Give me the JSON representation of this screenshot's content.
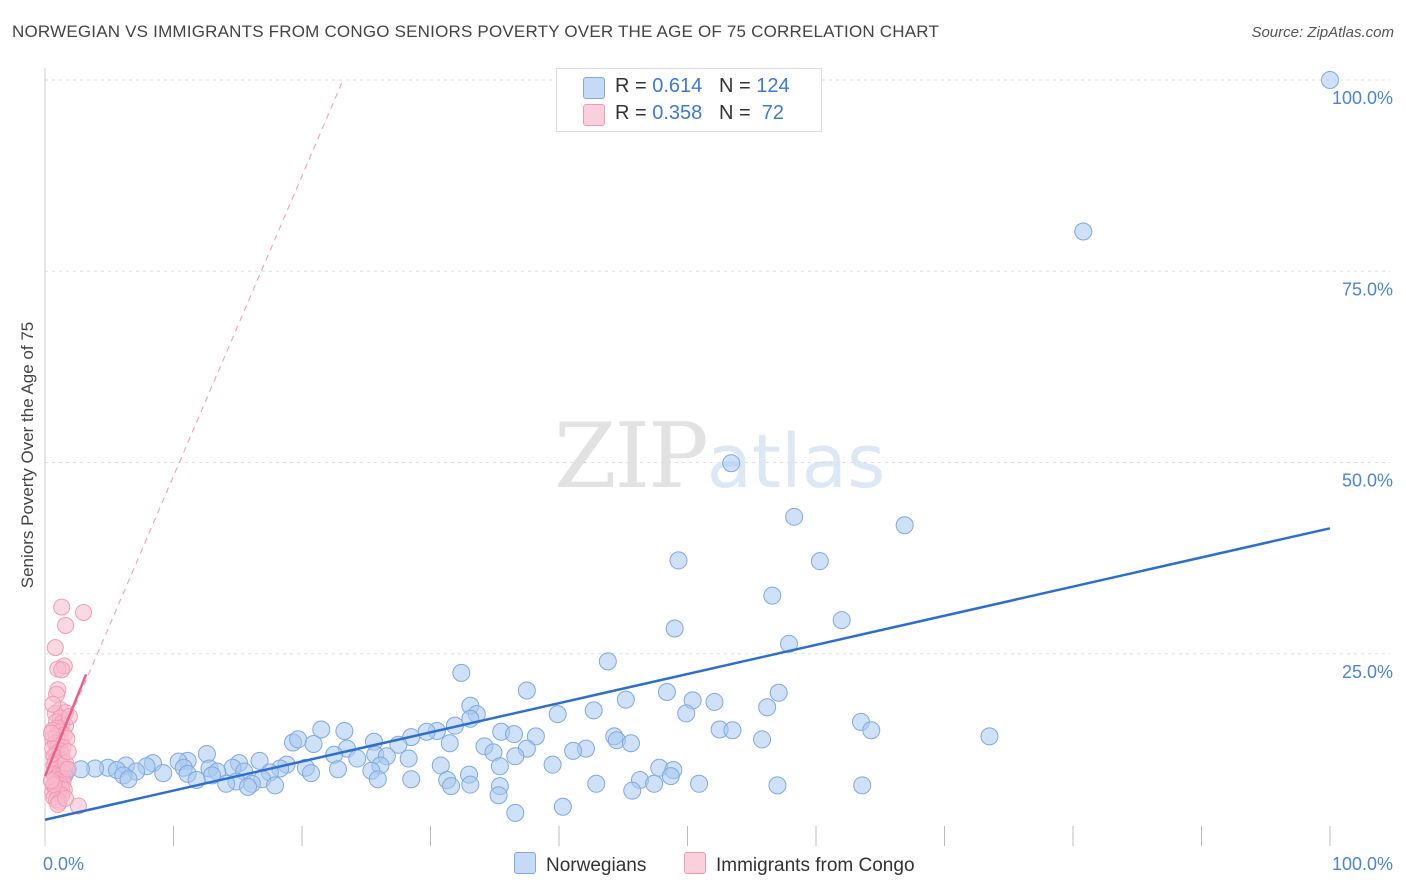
{
  "title": "NORWEGIAN VS IMMIGRANTS FROM CONGO SENIORS POVERTY OVER THE AGE OF 75 CORRELATION CHART",
  "source": "Source: ZipAtlas.com",
  "watermark": {
    "zip": "ZIP",
    "atlas": "atlas"
  },
  "legend": {
    "norwegians": {
      "r_label": "R = ",
      "r_value": "0.614",
      "n_label": "N = ",
      "n_value": "124",
      "color": "#a8c8f0"
    },
    "congo": {
      "r_label": "R = ",
      "r_value": "0.358",
      "n_label": "N = ",
      "n_value": " 72",
      "color": "#f7b9cc"
    }
  },
  "bottom_legend": {
    "norwegians": "Norwegians",
    "congo": "Immigrants from Congo"
  },
  "chart_data": {
    "type": "scatter",
    "xlabel": "",
    "ylabel": "Seniors Poverty Over the Age of 75",
    "xlim": [
      0,
      100
    ],
    "ylim": [
      0,
      100
    ],
    "x_tick_labels": [
      {
        "value": 0,
        "label": "0.0%"
      },
      {
        "value": 100,
        "label": "100.0%"
      }
    ],
    "y_tick_labels": [
      {
        "value": 25,
        "label": "25.0%"
      },
      {
        "value": 50,
        "label": "50.0%"
      },
      {
        "value": 75,
        "label": "75.0%"
      },
      {
        "value": 100,
        "label": "100.0%"
      }
    ],
    "colors": {
      "norwegians_fill": "#a8c8f0",
      "norwegians_line": "#2d6fd0",
      "congo_fill": "#f7b9cc",
      "congo_line": "#e8608a"
    },
    "series": [
      {
        "name": "Norwegians",
        "trend": {
          "x": [
            0,
            100
          ],
          "y": [
            3.3,
            41.4
          ]
        },
        "points": [
          [
            100,
            100
          ],
          [
            80.8,
            80.2
          ],
          [
            53.4,
            49.9
          ],
          [
            58.3,
            42.9
          ],
          [
            66.9,
            41.8
          ],
          [
            49.3,
            37.2
          ],
          [
            60.3,
            37.1
          ],
          [
            56.6,
            32.6
          ],
          [
            62.0,
            29.4
          ],
          [
            49.0,
            28.3
          ],
          [
            57.9,
            26.3
          ],
          [
            43.8,
            24.0
          ],
          [
            32.4,
            22.5
          ],
          [
            37.5,
            20.2
          ],
          [
            48.4,
            20.0
          ],
          [
            57.1,
            19.9
          ],
          [
            45.2,
            19.0
          ],
          [
            50.4,
            18.9
          ],
          [
            52.1,
            18.7
          ],
          [
            56.2,
            18.0
          ],
          [
            33.1,
            18.2
          ],
          [
            49.9,
            17.2
          ],
          [
            42.7,
            17.6
          ],
          [
            33.6,
            17.1
          ],
          [
            39.9,
            17.1
          ],
          [
            33.1,
            16.5
          ],
          [
            63.5,
            16.1
          ],
          [
            31.9,
            15.6
          ],
          [
            21.5,
            15.1
          ],
          [
            52.5,
            15.1
          ],
          [
            53.5,
            15.0
          ],
          [
            64.3,
            15.0
          ],
          [
            35.5,
            14.8
          ],
          [
            30.5,
            14.9
          ],
          [
            29.7,
            14.8
          ],
          [
            23.3,
            14.9
          ],
          [
            73.5,
            14.2
          ],
          [
            38.2,
            14.2
          ],
          [
            36.5,
            14.5
          ],
          [
            28.5,
            14.1
          ],
          [
            44.3,
            14.2
          ],
          [
            25.6,
            13.5
          ],
          [
            55.8,
            13.8
          ],
          [
            19.3,
            13.4
          ],
          [
            19.7,
            13.8
          ],
          [
            44.5,
            13.7
          ],
          [
            45.6,
            13.3
          ],
          [
            31.5,
            13.3
          ],
          [
            20.9,
            13.2
          ],
          [
            27.5,
            13.1
          ],
          [
            34.2,
            12.9
          ],
          [
            42.1,
            12.6
          ],
          [
            23.5,
            12.6
          ],
          [
            37.5,
            12.6
          ],
          [
            41.1,
            12.3
          ],
          [
            34.9,
            12.1
          ],
          [
            25.7,
            11.8
          ],
          [
            22.5,
            11.8
          ],
          [
            26.6,
            11.6
          ],
          [
            36.6,
            11.6
          ],
          [
            12.6,
            11.9
          ],
          [
            24.3,
            11.3
          ],
          [
            28.3,
            11.3
          ],
          [
            11.1,
            11.0
          ],
          [
            10.4,
            10.9
          ],
          [
            8.4,
            10.7
          ],
          [
            16.7,
            11.0
          ],
          [
            15.1,
            10.7
          ],
          [
            18.8,
            10.5
          ],
          [
            26.1,
            10.4
          ],
          [
            7.9,
            10.3
          ],
          [
            6.3,
            10.4
          ],
          [
            39.5,
            10.5
          ],
          [
            35.4,
            10.3
          ],
          [
            10.8,
            10.1
          ],
          [
            14.6,
            10.1
          ],
          [
            20.3,
            10.1
          ],
          [
            30.8,
            10.4
          ],
          [
            22.8,
            9.9
          ],
          [
            4.9,
            10.1
          ],
          [
            3.9,
            10.0
          ],
          [
            12.8,
            10.0
          ],
          [
            18.3,
            10.0
          ],
          [
            2.8,
            9.9
          ],
          [
            1.7,
            9.7
          ],
          [
            5.6,
            9.8
          ],
          [
            7.1,
            9.6
          ],
          [
            1.1,
            9.6
          ],
          [
            47.8,
            10.1
          ],
          [
            48.9,
            9.8
          ],
          [
            9.2,
            9.4
          ],
          [
            13.4,
            9.6
          ],
          [
            15.5,
            9.6
          ],
          [
            17.5,
            9.5
          ],
          [
            20.7,
            9.4
          ],
          [
            25.4,
            9.7
          ],
          [
            1.5,
            9.1
          ],
          [
            6.1,
            9.1
          ],
          [
            11.1,
            9.3
          ],
          [
            13.0,
            9.1
          ],
          [
            33.0,
            9.2
          ],
          [
            48.7,
            9.0
          ],
          [
            16.9,
            8.6
          ],
          [
            6.5,
            8.6
          ],
          [
            31.3,
            8.5
          ],
          [
            11.8,
            8.5
          ],
          [
            14.9,
            8.3
          ],
          [
            25.9,
            8.6
          ],
          [
            28.5,
            8.6
          ],
          [
            46.3,
            8.5
          ],
          [
            47.4,
            8.0
          ],
          [
            14.1,
            8.0
          ],
          [
            16.1,
            8.0
          ],
          [
            17.9,
            7.8
          ],
          [
            31.6,
            7.7
          ],
          [
            33.1,
            7.9
          ],
          [
            35.4,
            7.7
          ],
          [
            63.6,
            7.8
          ],
          [
            42.9,
            8.0
          ],
          [
            50.9,
            8.0
          ],
          [
            15.8,
            7.6
          ],
          [
            45.7,
            7.1
          ],
          [
            57.0,
            7.8
          ],
          [
            35.3,
            6.5
          ],
          [
            40.3,
            5.0
          ],
          [
            36.6,
            4.2
          ]
        ]
      },
      {
        "name": "Immigrants from Congo",
        "trend": {
          "x": [
            0,
            3.2
          ],
          "y": [
            9.0,
            22.3
          ]
        },
        "trend_extension": {
          "x": [
            0,
            23.2
          ],
          "y": [
            9.0,
            100
          ]
        },
        "points": [
          [
            1.3,
            31.1
          ],
          [
            3.0,
            30.4
          ],
          [
            1.6,
            28.7
          ],
          [
            0.8,
            25.8
          ],
          [
            1.5,
            23.4
          ],
          [
            1.0,
            23.0
          ],
          [
            1.3,
            22.9
          ],
          [
            1.0,
            20.3
          ],
          [
            0.9,
            19.7
          ],
          [
            1.2,
            17.7
          ],
          [
            1.6,
            17.3
          ],
          [
            0.8,
            17.2
          ],
          [
            1.2,
            16.6
          ],
          [
            0.9,
            16.1
          ],
          [
            1.3,
            15.9
          ],
          [
            1.6,
            15.6
          ],
          [
            1.0,
            15.3
          ],
          [
            0.6,
            15.0
          ],
          [
            1.2,
            14.8
          ],
          [
            1.5,
            14.4
          ],
          [
            0.9,
            14.2
          ],
          [
            0.6,
            13.9
          ],
          [
            1.2,
            13.6
          ],
          [
            1.7,
            13.9
          ],
          [
            0.8,
            13.3
          ],
          [
            1.0,
            13.0
          ],
          [
            1.4,
            12.8
          ],
          [
            0.6,
            12.6
          ],
          [
            1.2,
            12.3
          ],
          [
            0.9,
            12.0
          ],
          [
            1.3,
            11.8
          ],
          [
            0.7,
            11.6
          ],
          [
            1.0,
            11.3
          ],
          [
            1.3,
            11.1
          ],
          [
            0.8,
            10.9
          ],
          [
            1.1,
            10.6
          ],
          [
            0.7,
            10.4
          ],
          [
            1.3,
            10.3
          ],
          [
            1.0,
            10.0
          ],
          [
            0.8,
            9.8
          ],
          [
            1.2,
            9.6
          ],
          [
            1.4,
            9.4
          ],
          [
            0.7,
            9.2
          ],
          [
            1.0,
            9.0
          ],
          [
            1.3,
            8.8
          ],
          [
            0.8,
            8.6
          ],
          [
            1.1,
            8.4
          ],
          [
            1.4,
            8.2
          ],
          [
            0.9,
            8.0
          ],
          [
            1.2,
            7.8
          ],
          [
            0.7,
            7.7
          ],
          [
            1.0,
            7.5
          ],
          [
            1.3,
            7.3
          ],
          [
            0.9,
            7.1
          ],
          [
            1.5,
            7.2
          ],
          [
            0.6,
            6.9
          ],
          [
            1.0,
            6.7
          ],
          [
            1.3,
            6.5
          ],
          [
            0.7,
            6.2
          ],
          [
            0.9,
            5.9
          ],
          [
            1.1,
            5.6
          ],
          [
            1.0,
            5.3
          ],
          [
            2.6,
            5.1
          ],
          [
            0.7,
            7.9
          ],
          [
            1.6,
            10.7
          ],
          [
            1.8,
            12.2
          ],
          [
            0.5,
            14.6
          ],
          [
            1.9,
            16.8
          ],
          [
            0.6,
            18.4
          ],
          [
            1.8,
            9.9
          ],
          [
            0.5,
            8.4
          ],
          [
            1.6,
            6.1
          ]
        ]
      }
    ]
  }
}
